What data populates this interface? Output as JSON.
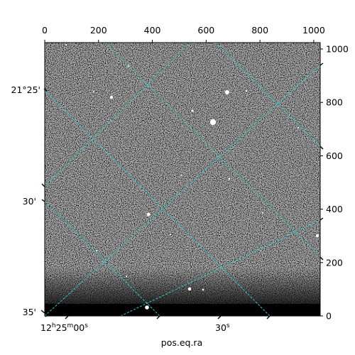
{
  "figure": {
    "xlabel": "pos.eq.ra",
    "ylabel": ""
  },
  "colors": {
    "grid": "#22d3d3",
    "frame": "#000000",
    "background": "#ffffff"
  },
  "chart_data": {
    "type": "heatmap",
    "image": "grayscale astronomical sky image with world-coordinate (RA/Dec) grid overlay",
    "pixel_axes": {
      "x": {
        "range": [
          0,
          1024
        ],
        "ticks": [
          0,
          200,
          400,
          600,
          800,
          1000
        ],
        "labels": [
          "0",
          "200",
          "400",
          "600",
          "800",
          "1000"
        ]
      },
      "y": {
        "range": [
          0,
          1024
        ],
        "ticks": [
          0,
          200,
          400,
          600,
          800,
          1000
        ],
        "labels": [
          "0",
          "200",
          "400",
          "600",
          "800",
          "1000"
        ]
      }
    },
    "world_axes": {
      "ra": {
        "label": "pos.eq.ra",
        "ticks": [
          {
            "label_main": "12",
            "sup1": "h",
            "mid": "25",
            "sup2": "m",
            "sec": "00",
            "sup3": "s"
          },
          {
            "label_main": "30",
            "sup1": "s"
          }
        ]
      },
      "dec": {
        "ticks": [
          "21°25'",
          "30'",
          "35'"
        ]
      }
    },
    "grid": true
  }
}
